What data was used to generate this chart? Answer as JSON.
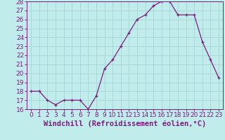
{
  "x": [
    0,
    1,
    2,
    3,
    4,
    5,
    6,
    7,
    8,
    9,
    10,
    11,
    12,
    13,
    14,
    15,
    16,
    17,
    18,
    19,
    20,
    21,
    22,
    23
  ],
  "y": [
    18,
    18,
    17,
    16.5,
    17,
    17,
    17,
    16,
    17.5,
    20.5,
    21.5,
    23,
    24.5,
    26,
    26.5,
    27.5,
    28,
    28,
    26.5,
    26.5,
    26.5,
    23.5,
    21.5,
    19.5
  ],
  "line_color": "#7B1E7B",
  "marker": "+",
  "bg_color": "#c0ecec",
  "grid_color": "#a8d8d8",
  "xlabel": "Windchill (Refroidissement éolien,°C)",
  "xlabel_fontsize": 7.5,
  "tick_fontsize": 6.5,
  "ylim": [
    16,
    28
  ],
  "yticks": [
    16,
    17,
    18,
    19,
    20,
    21,
    22,
    23,
    24,
    25,
    26,
    27,
    28
  ],
  "xticks": [
    0,
    1,
    2,
    3,
    4,
    5,
    6,
    7,
    8,
    9,
    10,
    11,
    12,
    13,
    14,
    15,
    16,
    17,
    18,
    19,
    20,
    21,
    22,
    23
  ],
  "xtick_labels": [
    "0",
    "1",
    "2",
    "3",
    "4",
    "5",
    "6",
    "7",
    "8",
    "9",
    "10",
    "11",
    "12",
    "13",
    "14",
    "15",
    "16",
    "17",
    "18",
    "19",
    "20",
    "21",
    "22",
    "23"
  ]
}
